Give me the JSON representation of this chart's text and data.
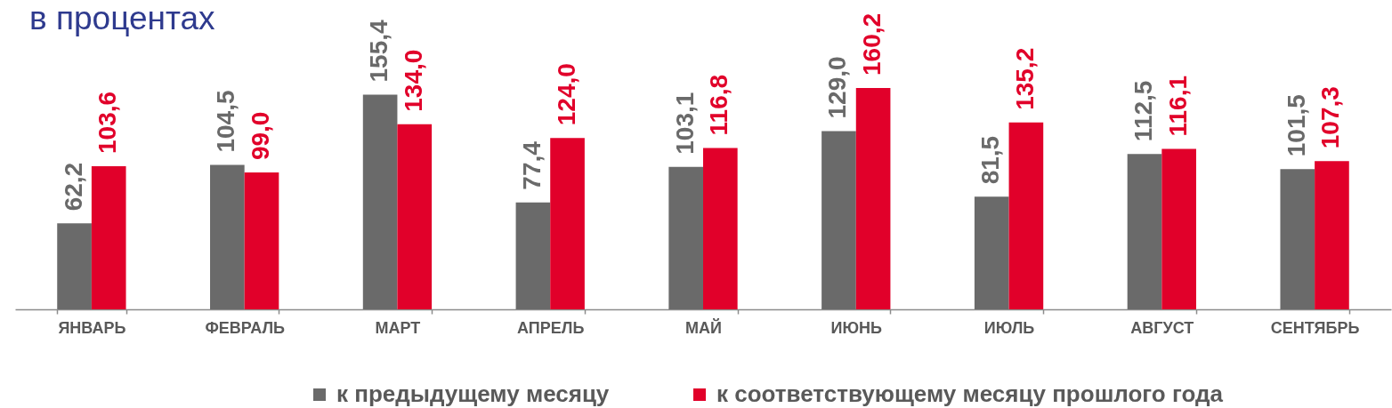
{
  "chart_data": {
    "type": "bar",
    "title": "в процентах",
    "categories": [
      "ЯНВАРЬ",
      "ФЕВРАЛЬ",
      "МАРТ",
      "АПРЕЛЬ",
      "МАЙ",
      "ИЮНЬ",
      "ИЮЛЬ",
      "АВГУСТ",
      "СЕНТЯБРЬ"
    ],
    "series": [
      {
        "name": "к предыдущему месяцу",
        "color": "#6a6a6a",
        "values": [
          62.2,
          104.5,
          155.4,
          77.4,
          103.1,
          129.0,
          81.5,
          112.5,
          101.5
        ],
        "value_labels": [
          "62,2",
          "104,5",
          "155,4",
          "77,4",
          "103,1",
          "129,0",
          "81,5",
          "112,5",
          "101,5"
        ]
      },
      {
        "name": "к соответствующему месяцу прошлого года",
        "color": "#e1002a",
        "values": [
          103.6,
          99.0,
          134.0,
          124.0,
          116.8,
          160.2,
          135.2,
          116.1,
          107.3
        ],
        "value_labels": [
          "103,6",
          "99,0",
          "134,0",
          "124,0",
          "116,8",
          "160,2",
          "135,2",
          "116,1",
          "107,3"
        ]
      }
    ],
    "legend": "bottom"
  }
}
